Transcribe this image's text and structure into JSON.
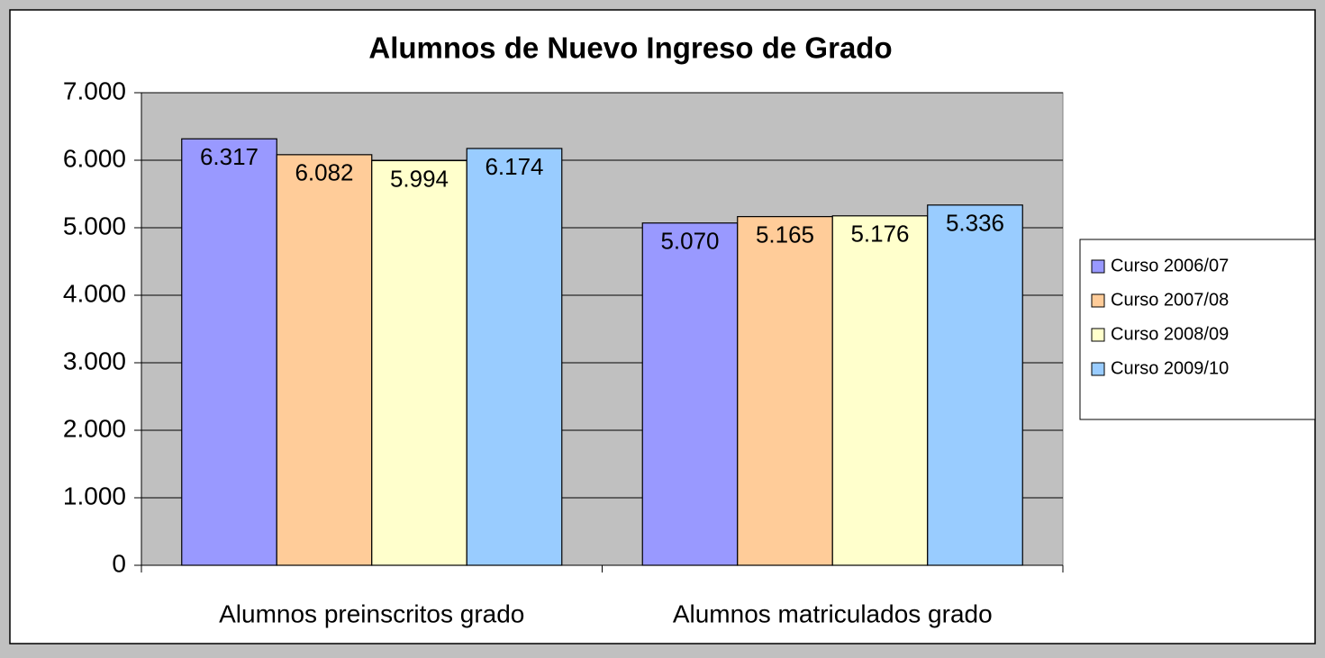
{
  "chart_data": {
    "type": "bar",
    "title": "Alumnos de Nuevo Ingreso de Grado",
    "categories": [
      "Alumnos preinscritos grado",
      "Alumnos matriculados grado"
    ],
    "series": [
      {
        "name": "Curso 2006/07",
        "color": "#9999ff",
        "values": [
          6317,
          5070
        ],
        "value_labels": [
          "6.317",
          "5.070"
        ]
      },
      {
        "name": "Curso 2007/08",
        "color": "#ffcc99",
        "values": [
          6082,
          5165
        ],
        "value_labels": [
          "6.082",
          "5.165"
        ]
      },
      {
        "name": "Curso 2008/09",
        "color": "#ffffcc",
        "values": [
          5994,
          5176
        ],
        "value_labels": [
          "5.994",
          "5.176"
        ]
      },
      {
        "name": "Curso 2009/10",
        "color": "#99ccff",
        "values": [
          6174,
          5336
        ],
        "value_labels": [
          "6.174",
          "5.336"
        ]
      }
    ],
    "ylim": [
      0,
      7000
    ],
    "yticks": [
      0,
      {
        "value": 1000,
        "label": "1.000"
      },
      {
        "value": 2000,
        "label": "2.000"
      },
      {
        "value": 3000,
        "label": "3.000"
      },
      {
        "value": 4000,
        "label": "4.000"
      },
      {
        "value": 5000,
        "label": "5.000"
      },
      {
        "value": 6000,
        "label": "6.000"
      },
      {
        "value": 7000,
        "label": "7.000"
      }
    ],
    "grid": true,
    "legend": "right"
  }
}
